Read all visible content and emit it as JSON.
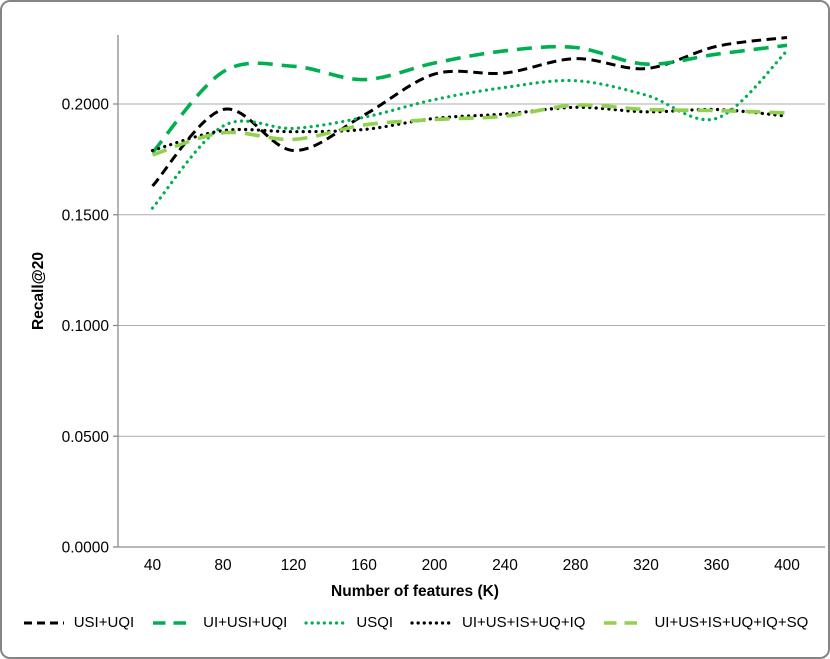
{
  "chart_data": {
    "type": "line",
    "title": "",
    "xlabel": "Number of features (K)",
    "ylabel": "Recall@20",
    "categories": [
      40,
      80,
      120,
      160,
      200,
      240,
      280,
      320,
      360,
      400
    ],
    "x_tick_labels": [
      "40",
      "80",
      "120",
      "160",
      "200",
      "240",
      "280",
      "320",
      "360",
      "400"
    ],
    "y_tick_labels": [
      "0.0000",
      "0.0500",
      "0.1000",
      "0.1500",
      "0.2000"
    ],
    "y_tick_values": [
      0.0,
      0.05,
      0.1,
      0.15,
      0.2
    ],
    "ylim": [
      0,
      0.235
    ],
    "grid": "horizontal",
    "legend_position": "bottom",
    "series": [
      {
        "name": "USI+UQI",
        "color": "#000000",
        "style": "dashed",
        "values": [
          0.163,
          0.1975,
          0.179,
          0.195,
          0.2135,
          0.214,
          0.2205,
          0.216,
          0.226,
          0.23
        ]
      },
      {
        "name": "UI+USI+UQI",
        "color": "#00B050",
        "style": "long-dashed",
        "values": [
          0.178,
          0.2145,
          0.217,
          0.211,
          0.2185,
          0.224,
          0.2255,
          0.218,
          0.2225,
          0.2265
        ]
      },
      {
        "name": "USQI",
        "color": "#00B050",
        "style": "dotted",
        "values": [
          0.153,
          0.19,
          0.189,
          0.194,
          0.202,
          0.2075,
          0.2105,
          0.204,
          0.1935,
          0.224
        ]
      },
      {
        "name": "UI+US+IS+UQ+IQ",
        "color": "#000000",
        "style": "dotted",
        "values": [
          0.179,
          0.188,
          0.1875,
          0.1885,
          0.1935,
          0.1955,
          0.1985,
          0.1965,
          0.1975,
          0.1945
        ]
      },
      {
        "name": "UI+US+IS+UQ+IQ+SQ",
        "color": "#92D050",
        "style": "long-dashed",
        "values": [
          0.177,
          0.187,
          0.184,
          0.1905,
          0.193,
          0.1945,
          0.1995,
          0.1975,
          0.197,
          0.196
        ]
      }
    ],
    "colors": {
      "axis": "#8C8C8C",
      "gridline": "#ACACAC",
      "frame_border": "#858585",
      "text": "#000000"
    }
  }
}
